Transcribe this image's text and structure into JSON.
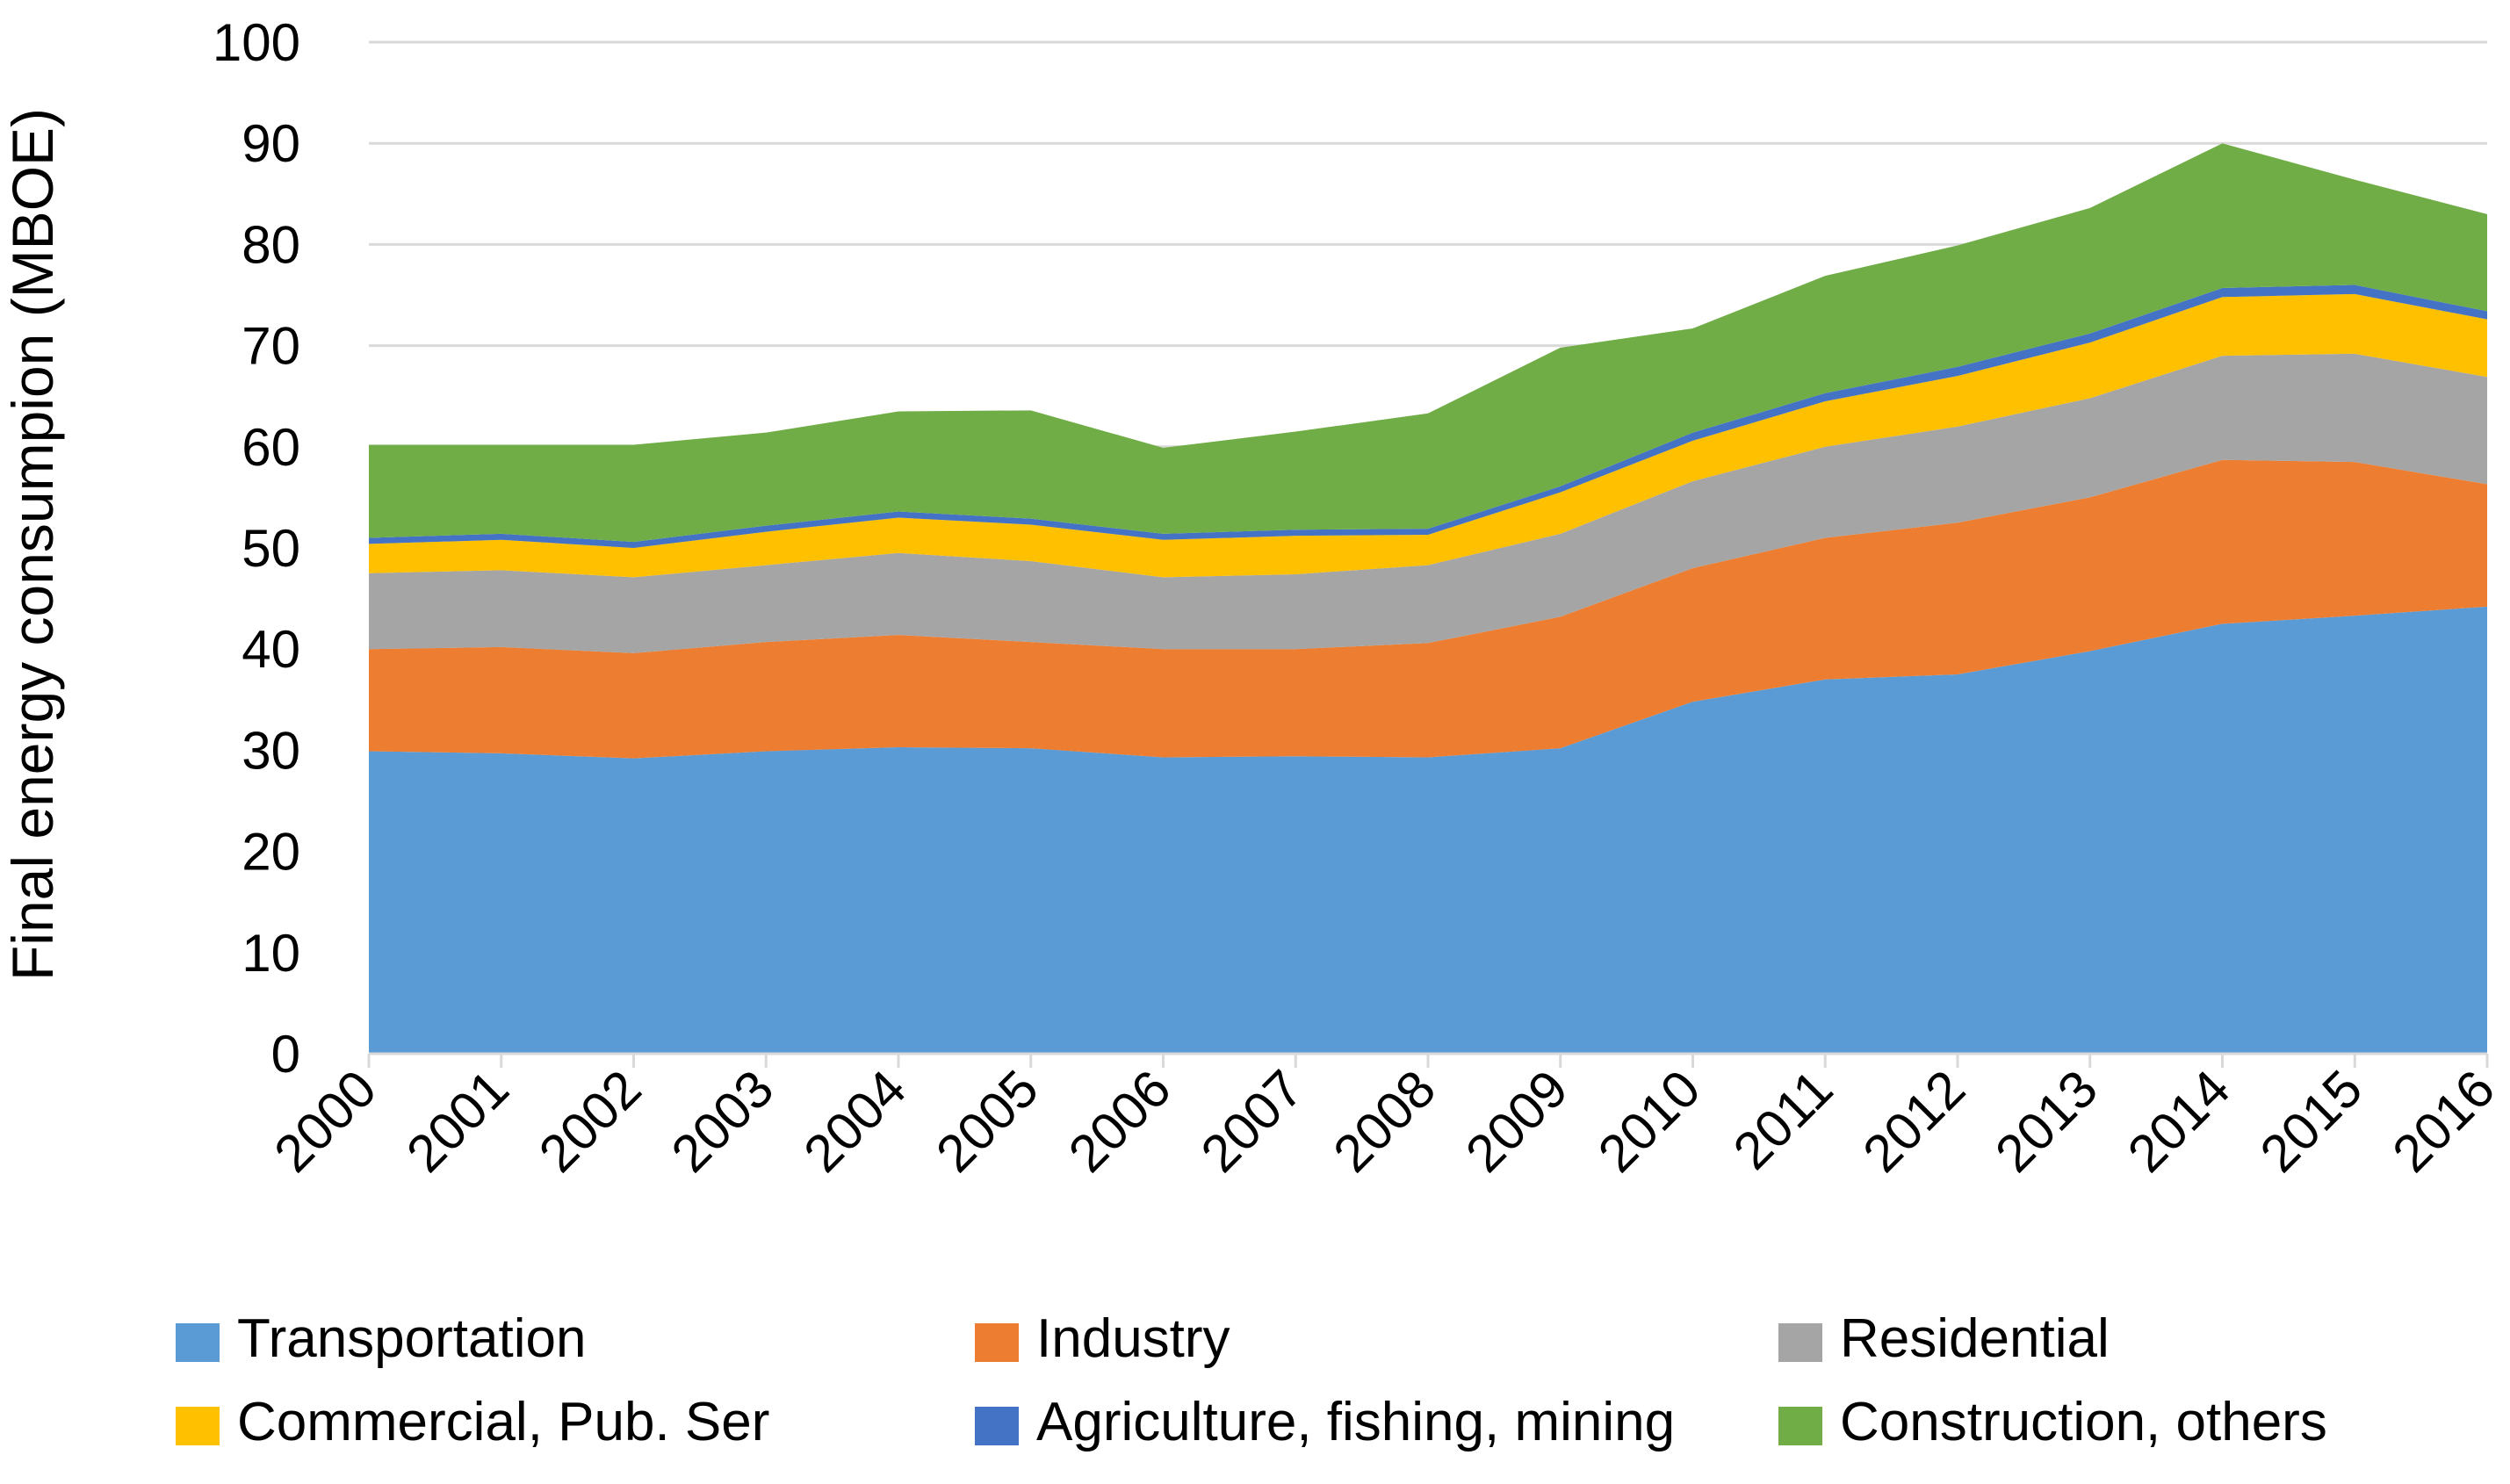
{
  "chart_data": {
    "type": "area",
    "stacked": true,
    "title": "",
    "xlabel": "",
    "ylabel": "Final energy consumpion (MBOE)",
    "ylim": [
      0,
      100
    ],
    "yticks": [
      0,
      10,
      20,
      30,
      40,
      50,
      60,
      70,
      80,
      90,
      100
    ],
    "grid": true,
    "legend_position": "bottom",
    "categories": [
      "2000",
      "2001",
      "2002",
      "2003",
      "2004",
      "2005",
      "2006",
      "2007",
      "2008",
      "2009",
      "2010",
      "2011",
      "2012",
      "2013",
      "2014",
      "2015",
      "2016"
    ],
    "series": [
      {
        "name": "Transportation",
        "color": "#5B9BD5",
        "values": [
          29.9,
          29.7,
          29.2,
          29.9,
          30.3,
          30.2,
          29.3,
          29.4,
          29.3,
          30.2,
          34.8,
          37.0,
          37.5,
          39.8,
          42.5,
          43.3,
          44.2
        ]
      },
      {
        "name": "Industry",
        "color": "#ED7D31",
        "values": [
          10.1,
          10.5,
          10.4,
          10.8,
          11.1,
          10.5,
          10.7,
          10.6,
          11.3,
          13.0,
          13.2,
          14.0,
          15.0,
          15.2,
          16.2,
          15.2,
          12.1
        ]
      },
      {
        "name": "Residential",
        "color": "#A5A5A5",
        "values": [
          7.5,
          7.6,
          7.5,
          7.6,
          8.1,
          8.0,
          7.1,
          7.4,
          7.7,
          8.2,
          8.6,
          9.0,
          9.5,
          9.8,
          10.3,
          10.7,
          10.6
        ]
      },
      {
        "name": "Commercial, Pub. Ser",
        "color": "#FFC000",
        "values": [
          2.9,
          3.0,
          2.9,
          3.3,
          3.5,
          3.6,
          3.7,
          3.8,
          3.0,
          4.1,
          4.0,
          4.5,
          5.0,
          5.5,
          5.8,
          5.9,
          5.7
        ]
      },
      {
        "name": "Agriculture, fishing, mining",
        "color": "#4472C4",
        "values": [
          0.6,
          0.6,
          0.6,
          0.6,
          0.6,
          0.6,
          0.6,
          0.6,
          0.6,
          0.6,
          0.8,
          0.8,
          0.9,
          0.9,
          0.9,
          0.9,
          0.8
        ]
      },
      {
        "name": "Construction, others",
        "color": "#70AD47",
        "values": [
          9.2,
          8.8,
          9.6,
          9.2,
          9.9,
          10.7,
          8.5,
          9.7,
          11.4,
          13.7,
          10.3,
          11.6,
          12.0,
          12.4,
          14.3,
          10.4,
          9.6
        ]
      }
    ]
  }
}
